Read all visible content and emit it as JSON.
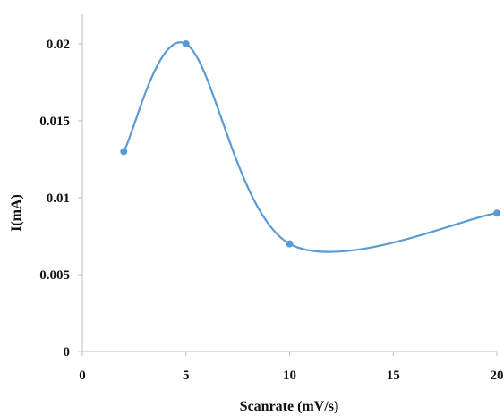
{
  "chart_data": {
    "type": "scatter",
    "xlabel": "Scanrate (mV/s)",
    "ylabel": "I(mA)",
    "xlim": [
      0,
      20
    ],
    "ylim": [
      0,
      0.02
    ],
    "x_ticks": [
      "0",
      "5",
      "10",
      "15",
      "20"
    ],
    "y_ticks": [
      "0",
      "0.005",
      "0.01",
      "0.015",
      "0.02"
    ],
    "line_style": "smoothed",
    "grid": false,
    "legend": "none",
    "series": [
      {
        "color": "#5b9bd5",
        "points": [
          {
            "x": 2,
            "y": 0.013
          },
          {
            "x": 5,
            "y": 0.02
          },
          {
            "x": 10,
            "y": 0.007
          },
          {
            "x": 20,
            "y": 0.009
          }
        ]
      }
    ]
  }
}
